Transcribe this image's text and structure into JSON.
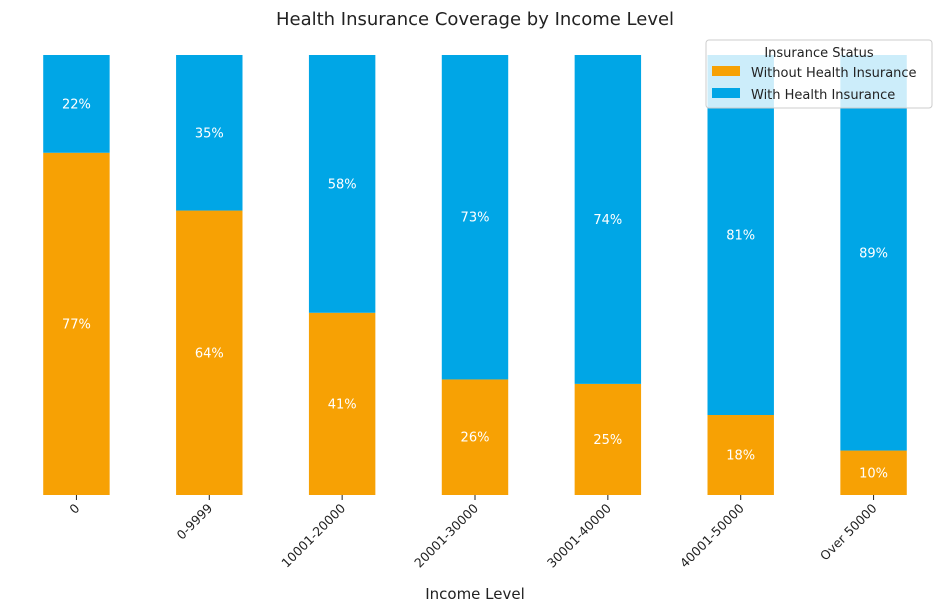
{
  "chart_data": {
    "type": "bar",
    "stacked": true,
    "normalized": true,
    "title": "Health Insurance Coverage by Income Level",
    "xlabel": "Income Level",
    "ylabel": "",
    "categories": [
      "0",
      "0-9999",
      "10001-20000",
      "20001-30000",
      "30001-40000",
      "40001-50000",
      "Over 50000"
    ],
    "series": [
      {
        "name": "Without Health Insurance",
        "color": "#f7a104",
        "values": [
          77,
          64,
          41,
          26,
          25,
          18,
          10
        ],
        "labels": [
          "77%",
          "64%",
          "41%",
          "26%",
          "25%",
          "18%",
          "10%"
        ]
      },
      {
        "name": "With Health Insurance",
        "color": "#00a6e6",
        "values": [
          22,
          35,
          58,
          73,
          74,
          81,
          89
        ],
        "labels": [
          "22%",
          "35%",
          "58%",
          "73%",
          "74%",
          "81%",
          "89%"
        ]
      }
    ],
    "legend": {
      "title": "Insurance Status",
      "placement": "top-right"
    },
    "ylim": [
      0,
      100
    ],
    "grid": false
  }
}
